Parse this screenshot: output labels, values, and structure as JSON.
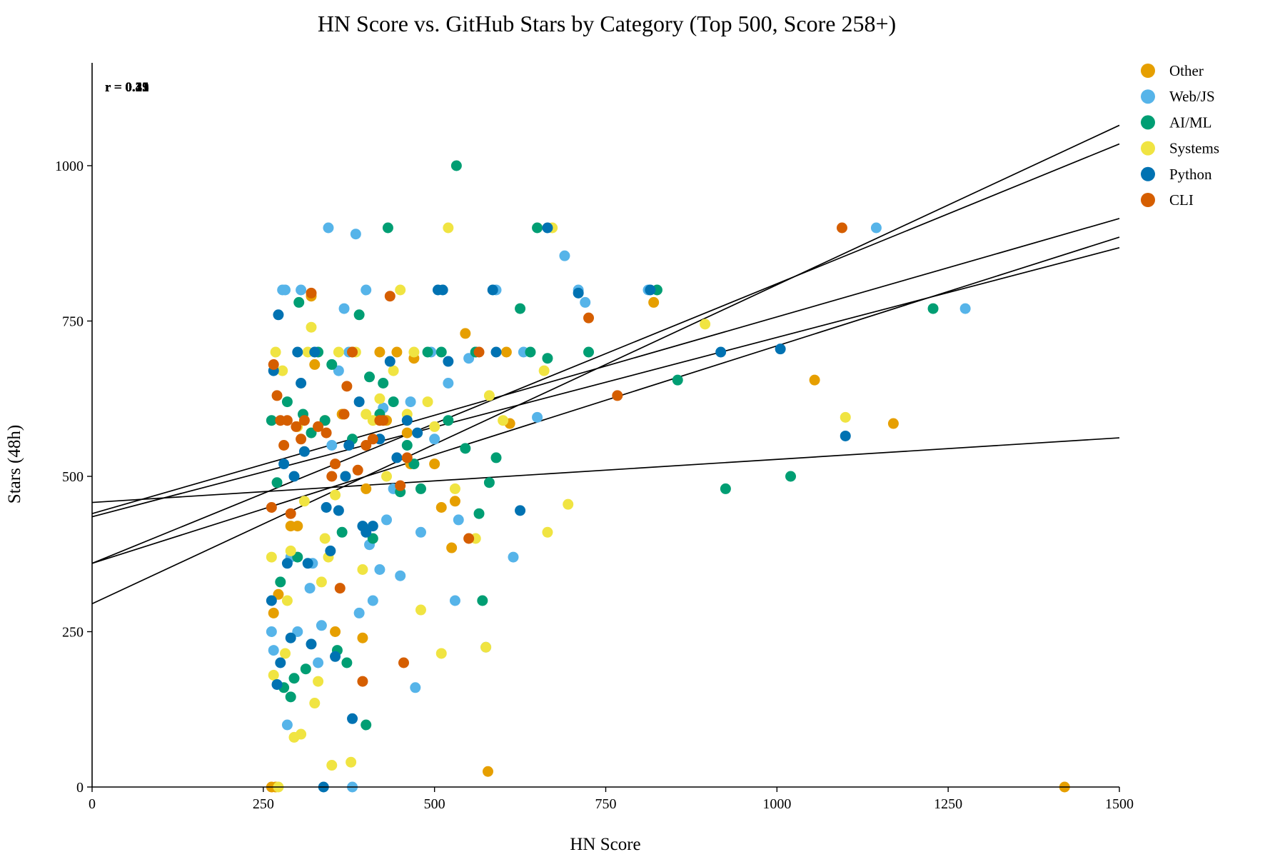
{
  "chart_data": {
    "type": "scatter",
    "title": "HN Score vs. GitHub Stars by Category (Top 500, Score 258+)",
    "xlabel": "HN Score",
    "ylabel": "Stars (48h)",
    "xlim": [
      0,
      1500
    ],
    "ylim": [
      0,
      1200
    ],
    "x_ticks": [
      0,
      250,
      500,
      750,
      1000,
      1250,
      1500
    ],
    "y_ticks": [
      0,
      250,
      500,
      750,
      1000
    ],
    "legend_position": "top-right",
    "grid": false,
    "correlation_annotations": [
      "r = 0.45",
      "r = 0.35",
      "r = 0.29",
      "r = 0.25",
      "r = 0.12",
      "r = 0.41"
    ],
    "series": [
      {
        "name": "Other",
        "color": "#E69F00",
        "trend": [
          [
            0,
            440
          ],
          [
            1500,
            915
          ]
        ],
        "points": [
          [
            262,
            0
          ],
          [
            268,
            0
          ],
          [
            265,
            280
          ],
          [
            272,
            310
          ],
          [
            290,
            420
          ],
          [
            300,
            420
          ],
          [
            320,
            790
          ],
          [
            325,
            680
          ],
          [
            340,
            590
          ],
          [
            355,
            250
          ],
          [
            365,
            600
          ],
          [
            380,
            700
          ],
          [
            395,
            240
          ],
          [
            400,
            480
          ],
          [
            420,
            700
          ],
          [
            430,
            590
          ],
          [
            445,
            700
          ],
          [
            460,
            570
          ],
          [
            465,
            520
          ],
          [
            470,
            690
          ],
          [
            500,
            520
          ],
          [
            510,
            450
          ],
          [
            525,
            385
          ],
          [
            530,
            460
          ],
          [
            545,
            730
          ],
          [
            560,
            700
          ],
          [
            578,
            25
          ],
          [
            605,
            700
          ],
          [
            610,
            585
          ],
          [
            820,
            780
          ],
          [
            1055,
            655
          ],
          [
            1170,
            585
          ],
          [
            1420,
            0
          ]
        ]
      },
      {
        "name": "Web/JS",
        "color": "#56B4E9",
        "trend": [
          [
            0,
            458
          ],
          [
            1500,
            562
          ]
        ],
        "points": [
          [
            262,
            250
          ],
          [
            265,
            220
          ],
          [
            270,
            165
          ],
          [
            278,
            800
          ],
          [
            282,
            800
          ],
          [
            285,
            100
          ],
          [
            290,
            370
          ],
          [
            300,
            250
          ],
          [
            305,
            800
          ],
          [
            318,
            320
          ],
          [
            322,
            360
          ],
          [
            330,
            200
          ],
          [
            335,
            260
          ],
          [
            345,
            900
          ],
          [
            350,
            550
          ],
          [
            360,
            670
          ],
          [
            368,
            770
          ],
          [
            375,
            700
          ],
          [
            380,
            0
          ],
          [
            385,
            890
          ],
          [
            390,
            280
          ],
          [
            400,
            800
          ],
          [
            405,
            390
          ],
          [
            410,
            300
          ],
          [
            420,
            350
          ],
          [
            425,
            610
          ],
          [
            430,
            430
          ],
          [
            440,
            480
          ],
          [
            450,
            340
          ],
          [
            465,
            620
          ],
          [
            472,
            160
          ],
          [
            480,
            410
          ],
          [
            495,
            700
          ],
          [
            500,
            560
          ],
          [
            520,
            650
          ],
          [
            530,
            300
          ],
          [
            535,
            430
          ],
          [
            550,
            690
          ],
          [
            560,
            700
          ],
          [
            575,
            225
          ],
          [
            590,
            800
          ],
          [
            615,
            370
          ],
          [
            630,
            700
          ],
          [
            650,
            595
          ],
          [
            690,
            855
          ],
          [
            710,
            800
          ],
          [
            720,
            780
          ],
          [
            812,
            800
          ],
          [
            1145,
            900
          ],
          [
            1275,
            770
          ]
        ]
      },
      {
        "name": "AI/ML",
        "color": "#009E73",
        "trend": [
          [
            0,
            360
          ],
          [
            1500,
            1035
          ]
        ],
        "points": [
          [
            262,
            590
          ],
          [
            270,
            490
          ],
          [
            275,
            330
          ],
          [
            280,
            160
          ],
          [
            285,
            620
          ],
          [
            290,
            145
          ],
          [
            295,
            175
          ],
          [
            300,
            370
          ],
          [
            302,
            780
          ],
          [
            308,
            600
          ],
          [
            312,
            190
          ],
          [
            320,
            570
          ],
          [
            330,
            700
          ],
          [
            340,
            590
          ],
          [
            350,
            680
          ],
          [
            358,
            220
          ],
          [
            365,
            410
          ],
          [
            372,
            200
          ],
          [
            380,
            560
          ],
          [
            390,
            760
          ],
          [
            400,
            100
          ],
          [
            405,
            660
          ],
          [
            410,
            400
          ],
          [
            420,
            600
          ],
          [
            425,
            650
          ],
          [
            432,
            900
          ],
          [
            440,
            620
          ],
          [
            450,
            475
          ],
          [
            460,
            550
          ],
          [
            470,
            520
          ],
          [
            480,
            480
          ],
          [
            490,
            700
          ],
          [
            510,
            700
          ],
          [
            520,
            590
          ],
          [
            532,
            1000
          ],
          [
            545,
            545
          ],
          [
            560,
            700
          ],
          [
            565,
            440
          ],
          [
            570,
            300
          ],
          [
            580,
            490
          ],
          [
            590,
            530
          ],
          [
            625,
            770
          ],
          [
            640,
            700
          ],
          [
            650,
            900
          ],
          [
            665,
            690
          ],
          [
            725,
            700
          ],
          [
            825,
            800
          ],
          [
            855,
            655
          ],
          [
            925,
            480
          ],
          [
            1020,
            500
          ],
          [
            1228,
            770
          ]
        ]
      },
      {
        "name": "Systems",
        "color": "#F0E442",
        "trend": [
          [
            0,
            295
          ],
          [
            1500,
            1065
          ]
        ],
        "points": [
          [
            262,
            370
          ],
          [
            265,
            180
          ],
          [
            268,
            700
          ],
          [
            272,
            0
          ],
          [
            278,
            670
          ],
          [
            282,
            215
          ],
          [
            285,
            300
          ],
          [
            290,
            380
          ],
          [
            295,
            80
          ],
          [
            300,
            580
          ],
          [
            305,
            85
          ],
          [
            310,
            460
          ],
          [
            315,
            700
          ],
          [
            320,
            740
          ],
          [
            325,
            135
          ],
          [
            330,
            170
          ],
          [
            335,
            330
          ],
          [
            340,
            400
          ],
          [
            345,
            370
          ],
          [
            350,
            35
          ],
          [
            355,
            470
          ],
          [
            360,
            700
          ],
          [
            370,
            500
          ],
          [
            378,
            40
          ],
          [
            385,
            700
          ],
          [
            395,
            350
          ],
          [
            400,
            600
          ],
          [
            410,
            590
          ],
          [
            420,
            625
          ],
          [
            430,
            500
          ],
          [
            440,
            670
          ],
          [
            450,
            800
          ],
          [
            460,
            600
          ],
          [
            470,
            700
          ],
          [
            480,
            285
          ],
          [
            490,
            620
          ],
          [
            500,
            580
          ],
          [
            510,
            215
          ],
          [
            520,
            900
          ],
          [
            530,
            480
          ],
          [
            560,
            400
          ],
          [
            575,
            225
          ],
          [
            580,
            630
          ],
          [
            600,
            590
          ],
          [
            660,
            670
          ],
          [
            665,
            410
          ],
          [
            672,
            900
          ],
          [
            695,
            455
          ],
          [
            895,
            745
          ],
          [
            1100,
            595
          ]
        ]
      },
      {
        "name": "Python",
        "color": "#0072B2",
        "trend": [
          [
            0,
            360
          ],
          [
            1500,
            885
          ]
        ],
        "points": [
          [
            262,
            300
          ],
          [
            265,
            670
          ],
          [
            270,
            165
          ],
          [
            272,
            760
          ],
          [
            275,
            200
          ],
          [
            280,
            520
          ],
          [
            285,
            360
          ],
          [
            290,
            240
          ],
          [
            295,
            500
          ],
          [
            300,
            700
          ],
          [
            305,
            650
          ],
          [
            310,
            540
          ],
          [
            315,
            360
          ],
          [
            320,
            230
          ],
          [
            325,
            700
          ],
          [
            338,
            0
          ],
          [
            342,
            450
          ],
          [
            348,
            380
          ],
          [
            355,
            210
          ],
          [
            360,
            445
          ],
          [
            370,
            500
          ],
          [
            375,
            550
          ],
          [
            380,
            110
          ],
          [
            390,
            620
          ],
          [
            395,
            420
          ],
          [
            400,
            410
          ],
          [
            410,
            420
          ],
          [
            420,
            560
          ],
          [
            435,
            685
          ],
          [
            445,
            530
          ],
          [
            460,
            590
          ],
          [
            475,
            570
          ],
          [
            505,
            800
          ],
          [
            512,
            800
          ],
          [
            520,
            685
          ],
          [
            585,
            800
          ],
          [
            590,
            700
          ],
          [
            625,
            445
          ],
          [
            665,
            900
          ],
          [
            710,
            795
          ],
          [
            815,
            800
          ],
          [
            918,
            700
          ],
          [
            1005,
            705
          ],
          [
            1100,
            565
          ]
        ]
      },
      {
        "name": "CLI",
        "color": "#D55E00",
        "trend": [
          [
            0,
            435
          ],
          [
            1500,
            868
          ]
        ],
        "points": [
          [
            262,
            450
          ],
          [
            265,
            680
          ],
          [
            270,
            630
          ],
          [
            275,
            590
          ],
          [
            280,
            550
          ],
          [
            285,
            590
          ],
          [
            290,
            440
          ],
          [
            298,
            580
          ],
          [
            305,
            560
          ],
          [
            310,
            590
          ],
          [
            320,
            795
          ],
          [
            330,
            580
          ],
          [
            342,
            570
          ],
          [
            350,
            500
          ],
          [
            355,
            520
          ],
          [
            362,
            320
          ],
          [
            368,
            600
          ],
          [
            372,
            645
          ],
          [
            380,
            700
          ],
          [
            388,
            510
          ],
          [
            395,
            170
          ],
          [
            400,
            550
          ],
          [
            410,
            560
          ],
          [
            420,
            590
          ],
          [
            425,
            590
          ],
          [
            435,
            790
          ],
          [
            450,
            485
          ],
          [
            455,
            200
          ],
          [
            460,
            530
          ],
          [
            550,
            400
          ],
          [
            565,
            700
          ],
          [
            725,
            755
          ],
          [
            767,
            630
          ],
          [
            1095,
            900
          ]
        ]
      }
    ]
  }
}
